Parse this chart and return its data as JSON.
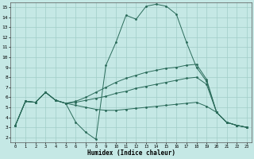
{
  "xlabel": "Humidex (Indice chaleur)",
  "background_color": "#c5e8e5",
  "grid_color": "#a0cec8",
  "line_color": "#2a6b5a",
  "xlim": [
    -0.5,
    23.5
  ],
  "ylim": [
    1.5,
    15.5
  ],
  "xticks": [
    0,
    1,
    2,
    3,
    4,
    5,
    6,
    7,
    8,
    9,
    10,
    11,
    12,
    13,
    14,
    15,
    16,
    17,
    18,
    19,
    20,
    21,
    22,
    23
  ],
  "yticks": [
    2,
    3,
    4,
    5,
    6,
    7,
    8,
    9,
    10,
    11,
    12,
    13,
    14,
    15
  ],
  "series": [
    [
      3.2,
      5.6,
      5.5,
      6.5,
      5.7,
      5.4,
      3.5,
      2.5,
      1.8,
      9.2,
      11.5,
      14.2,
      13.8,
      15.1,
      15.3,
      15.1,
      14.3,
      11.5,
      9.0,
      7.6,
      4.5,
      3.5,
      3.2,
      3.0
    ],
    [
      3.2,
      5.6,
      5.5,
      6.5,
      5.7,
      5.4,
      5.6,
      6.0,
      6.5,
      7.0,
      7.5,
      7.9,
      8.2,
      8.5,
      8.7,
      8.9,
      9.0,
      9.2,
      9.3,
      7.8,
      4.5,
      3.5,
      3.2,
      3.0
    ],
    [
      3.2,
      5.6,
      5.5,
      6.5,
      5.7,
      5.4,
      5.5,
      5.7,
      5.9,
      6.1,
      6.4,
      6.6,
      6.9,
      7.1,
      7.3,
      7.5,
      7.7,
      7.9,
      8.0,
      7.3,
      4.5,
      3.5,
      3.2,
      3.0
    ],
    [
      3.2,
      5.6,
      5.5,
      6.5,
      5.7,
      5.4,
      5.2,
      5.0,
      4.8,
      4.7,
      4.7,
      4.8,
      4.9,
      5.0,
      5.1,
      5.2,
      5.3,
      5.4,
      5.5,
      5.1,
      4.5,
      3.5,
      3.2,
      3.0
    ]
  ]
}
